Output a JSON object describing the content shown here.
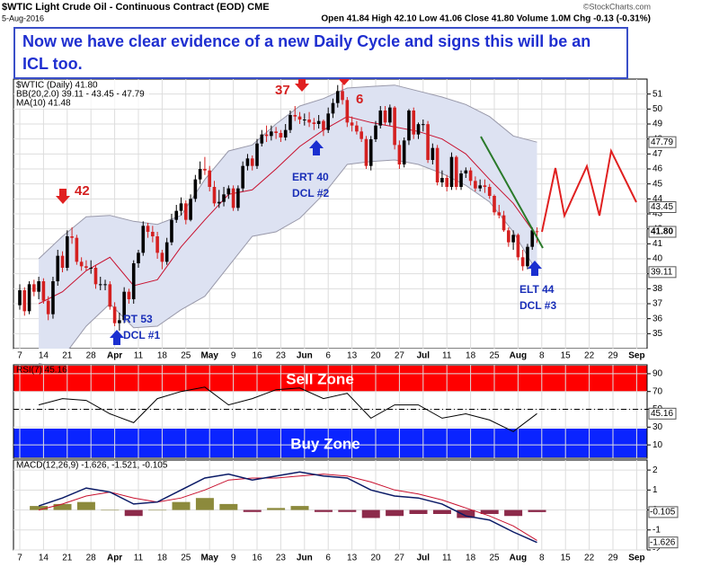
{
  "chart_data": [
    {
      "type": "candlestick",
      "title": "$WTIC Light Crude Oil - Continuous Contract (EOD) CME",
      "date": "5-Aug-2016",
      "quote": "Open 41.84 High 42.10 Low 41.06 Close 41.80 Volume 1.0M Chg -0.13 (-0.31%)",
      "source": "©StockCharts.com",
      "annotation_box": "Now we have clear evidence of a new Daily Cycle and signs this will be an ICL too.",
      "legend": [
        "$WTIC (Daily) 41.80",
        "BB(20,2.0) 39.11 - 43.45 - 47.79",
        "MA(10) 41.48"
      ],
      "annotations": [
        "42",
        "37",
        "6",
        "RT 53",
        "DCL #1",
        "ERT 40",
        "DCL #2",
        "ELT 44",
        "DCL #3"
      ],
      "categories": [
        "7",
        "14",
        "21",
        "28",
        "Apr",
        "11",
        "18",
        "25",
        "May",
        "9",
        "16",
        "23",
        "Jun",
        "6",
        "13",
        "20",
        "27",
        "Jul",
        "11",
        "18",
        "25",
        "Aug",
        "8",
        "15",
        "22",
        "29",
        "Sep"
      ],
      "open": [
        36.9,
        37.9,
        36.5,
        38.3,
        37.8,
        38.5,
        37.2,
        36.3,
        38.5,
        40.2,
        39.4,
        41.5,
        41.4,
        39.8,
        39.5,
        39.4,
        39.4,
        38.3,
        38.3,
        38.3,
        36.8,
        35.7,
        35.9,
        37.8,
        37.3,
        39.7,
        40.4,
        42.2,
        41.8,
        41.5,
        40.4,
        39.8,
        41.1,
        42.6,
        43.2,
        43.7,
        42.6,
        44.0,
        45.3,
        46.0,
        45.9,
        44.8,
        43.7,
        43.8,
        44.3,
        44.7,
        43.4,
        44.7,
        46.2,
        46.7,
        46.2,
        47.7,
        48.3,
        48.2,
        48.5,
        48.4,
        48.1,
        48.6,
        49.6,
        49.5,
        49.3,
        49.3,
        49.1,
        49.0,
        49.2,
        48.6,
        49.7,
        50.4,
        51.2,
        50.6,
        49.1,
        48.9,
        48.5,
        48.0,
        46.2,
        47.98,
        48.9,
        49.9,
        49.1,
        50.1,
        47.6,
        46.3,
        47.9,
        49.9,
        48.3,
        48.99,
        48.99,
        46.6,
        47.4,
        45.1,
        45.4,
        44.8,
        46.8,
        44.8,
        45.7,
        45.9,
        45.2,
        44.7,
        44.9,
        44.8,
        44.2,
        43.1,
        42.9,
        41.9,
        41.1,
        41.6,
        40.1,
        39.5,
        40.8,
        41.84
      ],
      "high": [
        38.3,
        38.1,
        38.5,
        38.6,
        38.8,
        38.7,
        37.5,
        38.8,
        40.6,
        40.5,
        41.9,
        42.1,
        41.6,
        40.1,
        39.9,
        39.9,
        39.6,
        38.8,
        38.6,
        38.5,
        37.1,
        36.4,
        38.1,
        38.0,
        39.9,
        40.6,
        42.5,
        42.4,
        42.2,
        41.8,
        40.6,
        41.4,
        43.0,
        43.6,
        44.1,
        43.9,
        44.3,
        45.6,
        46.5,
        46.8,
        46.2,
        45.2,
        44.6,
        44.8,
        44.9,
        44.9,
        44.9,
        46.5,
        47.0,
        46.9,
        48.0,
        48.6,
        48.9,
        48.9,
        48.8,
        48.6,
        49.0,
        49.9,
        50.2,
        49.8,
        49.7,
        49.8,
        49.4,
        49.6,
        49.3,
        50.1,
        50.7,
        51.6,
        51.7,
        50.8,
        49.5,
        49.2,
        48.8,
        48.2,
        48.2,
        49.2,
        50.2,
        50.2,
        50.3,
        50.2,
        47.9,
        48.1,
        50.0,
        50.1,
        49.1,
        49.3,
        49.2,
        47.7,
        47.6,
        45.9,
        45.6,
        47.1,
        46.9,
        45.9,
        46.1,
        46.1,
        45.5,
        45.3,
        45.3,
        45.0,
        44.3,
        43.6,
        43.2,
        42.1,
        41.9,
        41.7,
        40.6,
        41.0,
        42.1,
        42.1
      ],
      "low": [
        36.6,
        36.2,
        36.3,
        37.5,
        37.3,
        37.0,
        35.9,
        36.0,
        38.2,
        39.1,
        39.2,
        41.0,
        39.6,
        39.2,
        39.2,
        39.0,
        38.0,
        37.9,
        37.9,
        36.6,
        35.5,
        35.2,
        35.7,
        37.0,
        37.0,
        39.4,
        40.2,
        41.4,
        41.1,
        40.0,
        39.3,
        39.6,
        40.9,
        42.4,
        42.9,
        42.3,
        42.5,
        43.8,
        45.0,
        45.6,
        44.5,
        43.5,
        43.4,
        43.5,
        44.0,
        43.2,
        43.2,
        44.5,
        45.9,
        45.9,
        46.0,
        47.5,
        47.8,
        47.9,
        48.0,
        47.8,
        47.9,
        48.4,
        49.2,
        49.0,
        48.9,
        48.8,
        48.6,
        48.7,
        48.2,
        48.4,
        49.4,
        50.1,
        50.3,
        48.8,
        48.5,
        48.3,
        47.8,
        46.0,
        45.9,
        47.8,
        48.7,
        48.9,
        48.9,
        47.3,
        46.0,
        46.1,
        47.6,
        48.0,
        48.0,
        48.5,
        46.4,
        46.3,
        44.9,
        44.8,
        44.5,
        44.6,
        44.6,
        44.6,
        45.4,
        44.9,
        44.5,
        44.5,
        44.4,
        44.0,
        42.9,
        42.7,
        41.8,
        40.8,
        40.6,
        39.9,
        39.2,
        39.3,
        40.6,
        41.06
      ],
      "close": [
        37.9,
        36.5,
        38.3,
        37.8,
        38.5,
        37.2,
        36.3,
        38.5,
        40.2,
        39.4,
        41.5,
        41.4,
        39.8,
        39.5,
        39.4,
        39.4,
        38.3,
        38.3,
        38.3,
        36.8,
        35.7,
        35.9,
        37.8,
        37.3,
        39.7,
        40.4,
        42.2,
        41.8,
        41.5,
        40.4,
        39.8,
        41.1,
        42.6,
        43.2,
        43.7,
        42.6,
        44.0,
        45.3,
        46.0,
        45.9,
        44.8,
        43.7,
        43.8,
        44.3,
        44.7,
        43.4,
        44.7,
        46.2,
        46.7,
        46.2,
        47.7,
        48.3,
        48.2,
        48.5,
        48.4,
        48.1,
        48.6,
        49.6,
        49.5,
        49.3,
        49.3,
        49.1,
        49.0,
        49.2,
        48.6,
        49.7,
        50.4,
        51.2,
        50.6,
        49.1,
        48.9,
        48.5,
        48.0,
        46.2,
        47.98,
        48.9,
        49.9,
        49.1,
        50.1,
        47.6,
        46.3,
        47.9,
        49.9,
        48.3,
        48.99,
        48.99,
        46.6,
        47.4,
        45.1,
        45.4,
        44.8,
        46.8,
        44.8,
        45.7,
        45.9,
        45.2,
        44.7,
        44.9,
        44.8,
        44.2,
        43.1,
        42.9,
        41.9,
        41.1,
        41.6,
        40.1,
        39.5,
        40.8,
        41.9,
        41.8
      ],
      "bb_upper": [
        40.0,
        41.5,
        42.8,
        42.9,
        42.5,
        42.3,
        42.9,
        45.3,
        47.2,
        47.6,
        49.0,
        50.2,
        50.7,
        51.4,
        51.5,
        51.6,
        51.2,
        50.8,
        50.3,
        49.5,
        48.2,
        47.79
      ],
      "bb_lower": [
        33.0,
        33.4,
        35.5,
        37.0,
        35.4,
        35.5,
        36.6,
        37.5,
        39.5,
        41.5,
        41.8,
        42.7,
        44.3,
        46.3,
        46.5,
        46.6,
        46.3,
        45.7,
        44.9,
        43.8,
        41.8,
        39.11
      ],
      "ma": [
        37.0,
        37.8,
        39.2,
        40.1,
        38.2,
        38.6,
        40.8,
        42.6,
        44.3,
        44.6,
        46.0,
        47.5,
        48.6,
        49.5,
        49.1,
        48.8,
        48.5,
        48.0,
        47.0,
        45.3,
        43.7,
        41.48
      ],
      "up_color": "#000000",
      "down_color": "#d42020",
      "ma_color": "#c8102e",
      "band_color": "#dde2f2",
      "ylim": [
        34,
        52
      ],
      "yticks": [
        35,
        36,
        37,
        38,
        39,
        40,
        41,
        42,
        43,
        44,
        45,
        46,
        47,
        48,
        49,
        50,
        51
      ],
      "price_labels": [
        47.79,
        43.45,
        {
          "value": 41.8,
          "label": "41.80"
        },
        39.11
      ],
      "grid": true
    },
    {
      "type": "line",
      "legend": "RSI(7) 45.16",
      "zones": [
        "Sell Zone",
        "Buy Zone"
      ],
      "values": [
        55,
        62,
        60,
        45,
        35,
        62,
        70,
        75,
        55,
        62,
        72,
        74,
        62,
        68,
        40,
        55,
        55,
        40,
        45,
        38,
        25,
        45.16
      ],
      "color": "#000000",
      "ylim": [
        -5,
        100
      ],
      "yticks": [
        10,
        30,
        50,
        70,
        90
      ],
      "value_label": 45.16,
      "grid": true
    },
    {
      "type": "macd",
      "legend": "MACD(12,26,9) -1.626, -1.521, -0.105",
      "macd": [
        0.2,
        0.6,
        1.1,
        0.9,
        0.3,
        0.4,
        1.0,
        1.6,
        1.8,
        1.5,
        1.7,
        1.9,
        1.7,
        1.6,
        1.0,
        0.7,
        0.6,
        0.3,
        -0.3,
        -0.5,
        -1.1,
        -1.626
      ],
      "signal": [
        0.0,
        0.3,
        0.7,
        0.9,
        0.6,
        0.4,
        0.6,
        1.0,
        1.5,
        1.6,
        1.6,
        1.7,
        1.8,
        1.7,
        1.4,
        1.0,
        0.8,
        0.5,
        0.1,
        -0.3,
        -0.8,
        -1.521
      ],
      "histogram": [
        0.2,
        0.3,
        0.4,
        0.0,
        -0.3,
        0.0,
        0.4,
        0.6,
        0.3,
        -0.1,
        0.1,
        0.2,
        -0.1,
        -0.1,
        -0.4,
        -0.3,
        -0.2,
        -0.2,
        -0.4,
        -0.2,
        -0.3,
        -0.105
      ],
      "macd_color": "#0a1a66",
      "signal_color": "#c8102e",
      "pos_color": "#8c8a3c",
      "neg_color": "#8c2a4a",
      "ylim": [
        -2,
        2.5
      ],
      "yticks": [
        -2,
        -1,
        0,
        1,
        2
      ],
      "value_labels": [
        -0.105,
        -1.626
      ],
      "categories": [
        "7",
        "14",
        "21",
        "28",
        "Apr",
        "11",
        "18",
        "25",
        "May",
        "9",
        "16",
        "23",
        "Jun",
        "6",
        "13",
        "20",
        "27",
        "Jul",
        "11",
        "18",
        "25",
        "Aug",
        "8",
        "15",
        "22",
        "29",
        "Sep"
      ],
      "grid": true
    }
  ]
}
